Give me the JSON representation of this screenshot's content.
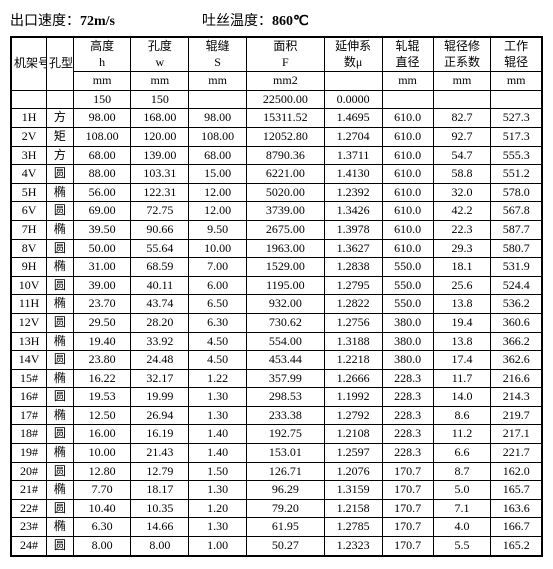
{
  "header": {
    "exit_speed_label": "出口速度：",
    "exit_speed_value": "72m/s",
    "temp_label": "吐丝温度：",
    "temp_value": "860℃"
  },
  "table": {
    "columns": [
      {
        "name": "机架号",
        "unit": ""
      },
      {
        "name": "孔型",
        "unit": ""
      },
      {
        "name": "高度\nh",
        "unit": "mm"
      },
      {
        "name": "孔度\nw",
        "unit": "mm"
      },
      {
        "name": "辊缝\nS",
        "unit": "mm"
      },
      {
        "name": "面积\nF",
        "unit": "mm2"
      },
      {
        "name": "延伸系\n数μ",
        "unit": ""
      },
      {
        "name": "轧辊\n直径",
        "unit": "mm"
      },
      {
        "name": "辊径修\n正系数",
        "unit": "mm"
      },
      {
        "name": "工作\n辊径",
        "unit": "mm"
      }
    ],
    "init_row": [
      "",
      "",
      "150",
      "150",
      "",
      "22500.00",
      "0.0000",
      "",
      "",
      ""
    ],
    "rows": [
      [
        "1H",
        "方",
        "98.00",
        "168.00",
        "98.00",
        "15311.52",
        "1.4695",
        "610.0",
        "82.7",
        "527.3"
      ],
      [
        "2V",
        "矩",
        "108.00",
        "120.00",
        "108.00",
        "12052.80",
        "1.2704",
        "610.0",
        "92.7",
        "517.3"
      ],
      [
        "3H",
        "方",
        "68.00",
        "139.00",
        "68.00",
        "8790.36",
        "1.3711",
        "610.0",
        "54.7",
        "555.3"
      ],
      [
        "4V",
        "圆",
        "88.00",
        "103.31",
        "15.00",
        "6221.00",
        "1.4130",
        "610.0",
        "58.8",
        "551.2"
      ],
      [
        "5H",
        "椭",
        "56.00",
        "122.31",
        "12.00",
        "5020.00",
        "1.2392",
        "610.0",
        "32.0",
        "578.0"
      ],
      [
        "6V",
        "圆",
        "69.00",
        "72.75",
        "12.00",
        "3739.00",
        "1.3426",
        "610.0",
        "42.2",
        "567.8"
      ],
      [
        "7H",
        "椭",
        "39.50",
        "90.66",
        "9.50",
        "2675.00",
        "1.3978",
        "610.0",
        "22.3",
        "587.7"
      ],
      [
        "8V",
        "圆",
        "50.00",
        "55.64",
        "10.00",
        "1963.00",
        "1.3627",
        "610.0",
        "29.3",
        "580.7"
      ],
      [
        "9H",
        "椭",
        "31.00",
        "68.59",
        "7.00",
        "1529.00",
        "1.2838",
        "550.0",
        "18.1",
        "531.9"
      ],
      [
        "10V",
        "圆",
        "39.00",
        "40.11",
        "6.00",
        "1195.00",
        "1.2795",
        "550.0",
        "25.6",
        "524.4"
      ],
      [
        "11H",
        "椭",
        "23.70",
        "43.74",
        "6.50",
        "932.00",
        "1.2822",
        "550.0",
        "13.8",
        "536.2"
      ],
      [
        "12V",
        "圆",
        "29.50",
        "28.20",
        "6.30",
        "730.62",
        "1.2756",
        "380.0",
        "19.4",
        "360.6"
      ],
      [
        "13H",
        "椭",
        "19.40",
        "33.92",
        "4.50",
        "554.00",
        "1.3188",
        "380.0",
        "13.8",
        "366.2"
      ],
      [
        "14V",
        "圆",
        "23.80",
        "24.48",
        "4.50",
        "453.44",
        "1.2218",
        "380.0",
        "17.4",
        "362.6"
      ],
      [
        "15#",
        "椭",
        "16.22",
        "32.17",
        "1.22",
        "357.99",
        "1.2666",
        "228.3",
        "11.7",
        "216.6"
      ],
      [
        "16#",
        "圆",
        "19.53",
        "19.99",
        "1.30",
        "298.53",
        "1.1992",
        "228.3",
        "14.0",
        "214.3"
      ],
      [
        "17#",
        "椭",
        "12.50",
        "26.94",
        "1.30",
        "233.38",
        "1.2792",
        "228.3",
        "8.6",
        "219.7"
      ],
      [
        "18#",
        "圆",
        "16.00",
        "16.19",
        "1.40",
        "192.75",
        "1.2108",
        "228.3",
        "11.2",
        "217.1"
      ],
      [
        "19#",
        "椭",
        "10.00",
        "21.43",
        "1.40",
        "153.01",
        "1.2597",
        "228.3",
        "6.6",
        "221.7"
      ],
      [
        "20#",
        "圆",
        "12.80",
        "12.79",
        "1.50",
        "126.71",
        "1.2076",
        "170.7",
        "8.7",
        "162.0"
      ],
      [
        "21#",
        "椭",
        "7.70",
        "18.17",
        "1.30",
        "96.29",
        "1.3159",
        "170.7",
        "5.0",
        "165.7"
      ],
      [
        "22#",
        "圆",
        "10.40",
        "10.35",
        "1.20",
        "79.20",
        "1.2158",
        "170.7",
        "7.1",
        "163.6"
      ],
      [
        "23#",
        "椭",
        "6.30",
        "14.66",
        "1.30",
        "61.95",
        "1.2785",
        "170.7",
        "4.0",
        "166.7"
      ],
      [
        "24#",
        "圆",
        "8.00",
        "8.00",
        "1.00",
        "50.27",
        "1.2323",
        "170.7",
        "5.5",
        "165.2"
      ]
    ]
  },
  "style": {
    "border_color": "#000000",
    "background": "#ffffff",
    "font_family": "SimSun",
    "font_size_pt": 10
  }
}
